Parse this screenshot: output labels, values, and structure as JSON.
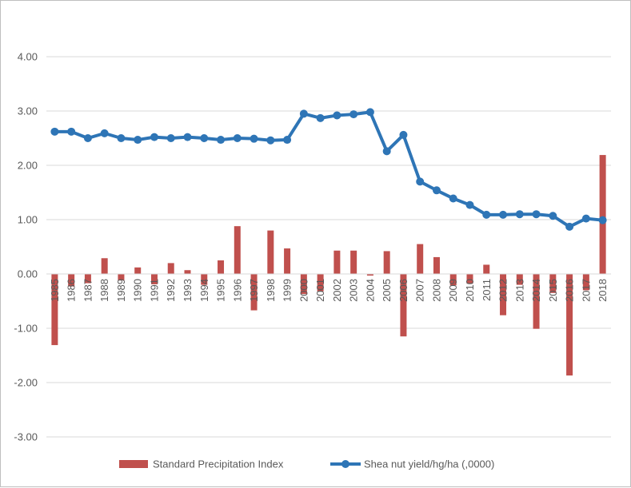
{
  "chart_data": {
    "type": "bar+line",
    "title": "",
    "xlabel": "",
    "ylabel": "",
    "ylim": [
      -3,
      4
    ],
    "yticks": [
      -3,
      -2,
      -1,
      0,
      1,
      2,
      3,
      4
    ],
    "ytick_labels": [
      "-3.00",
      "-2.00",
      "-1.00",
      "0.00",
      "1.00",
      "2.00",
      "3.00",
      "4.00"
    ],
    "grid": true,
    "legend_position": "bottom",
    "categories": [
      "1985",
      "1986",
      "1987",
      "1988",
      "1989",
      "1990",
      "1991",
      "1992",
      "1993",
      "1994",
      "1995",
      "1996",
      "1997",
      "1998",
      "1999",
      "2000",
      "2001",
      "2002",
      "2003",
      "2004",
      "2005",
      "2006",
      "2007",
      "2008",
      "2009",
      "2010",
      "2011",
      "2012",
      "2013",
      "2014",
      "2015",
      "2016",
      "2017",
      "2018"
    ],
    "series": [
      {
        "name": "Standard Precipitation Index",
        "kind": "bar",
        "color": "#c0504d",
        "values": [
          -1.31,
          -0.23,
          -0.17,
          0.29,
          -0.12,
          0.12,
          -0.19,
          0.2,
          0.07,
          -0.2,
          0.25,
          0.88,
          -0.67,
          0.8,
          0.47,
          -0.37,
          -0.32,
          0.43,
          0.43,
          -0.03,
          0.42,
          -1.15,
          0.55,
          0.31,
          -0.21,
          -0.18,
          0.17,
          -0.76,
          -0.2,
          -1.01,
          -0.35,
          -1.87,
          -0.3,
          2.19
        ]
      },
      {
        "name": "Shea nut yield/hg/ha (,0000)",
        "kind": "line",
        "color": "#2e75b6",
        "values": [
          2.62,
          2.62,
          2.5,
          2.59,
          2.5,
          2.47,
          2.52,
          2.5,
          2.52,
          2.5,
          2.47,
          2.5,
          2.49,
          2.46,
          2.47,
          2.95,
          2.87,
          2.92,
          2.94,
          2.98,
          2.26,
          2.56,
          1.7,
          1.54,
          1.39,
          1.27,
          1.09,
          1.09,
          1.1,
          1.1,
          1.07,
          0.87,
          1.02,
          0.99
        ]
      }
    ]
  }
}
